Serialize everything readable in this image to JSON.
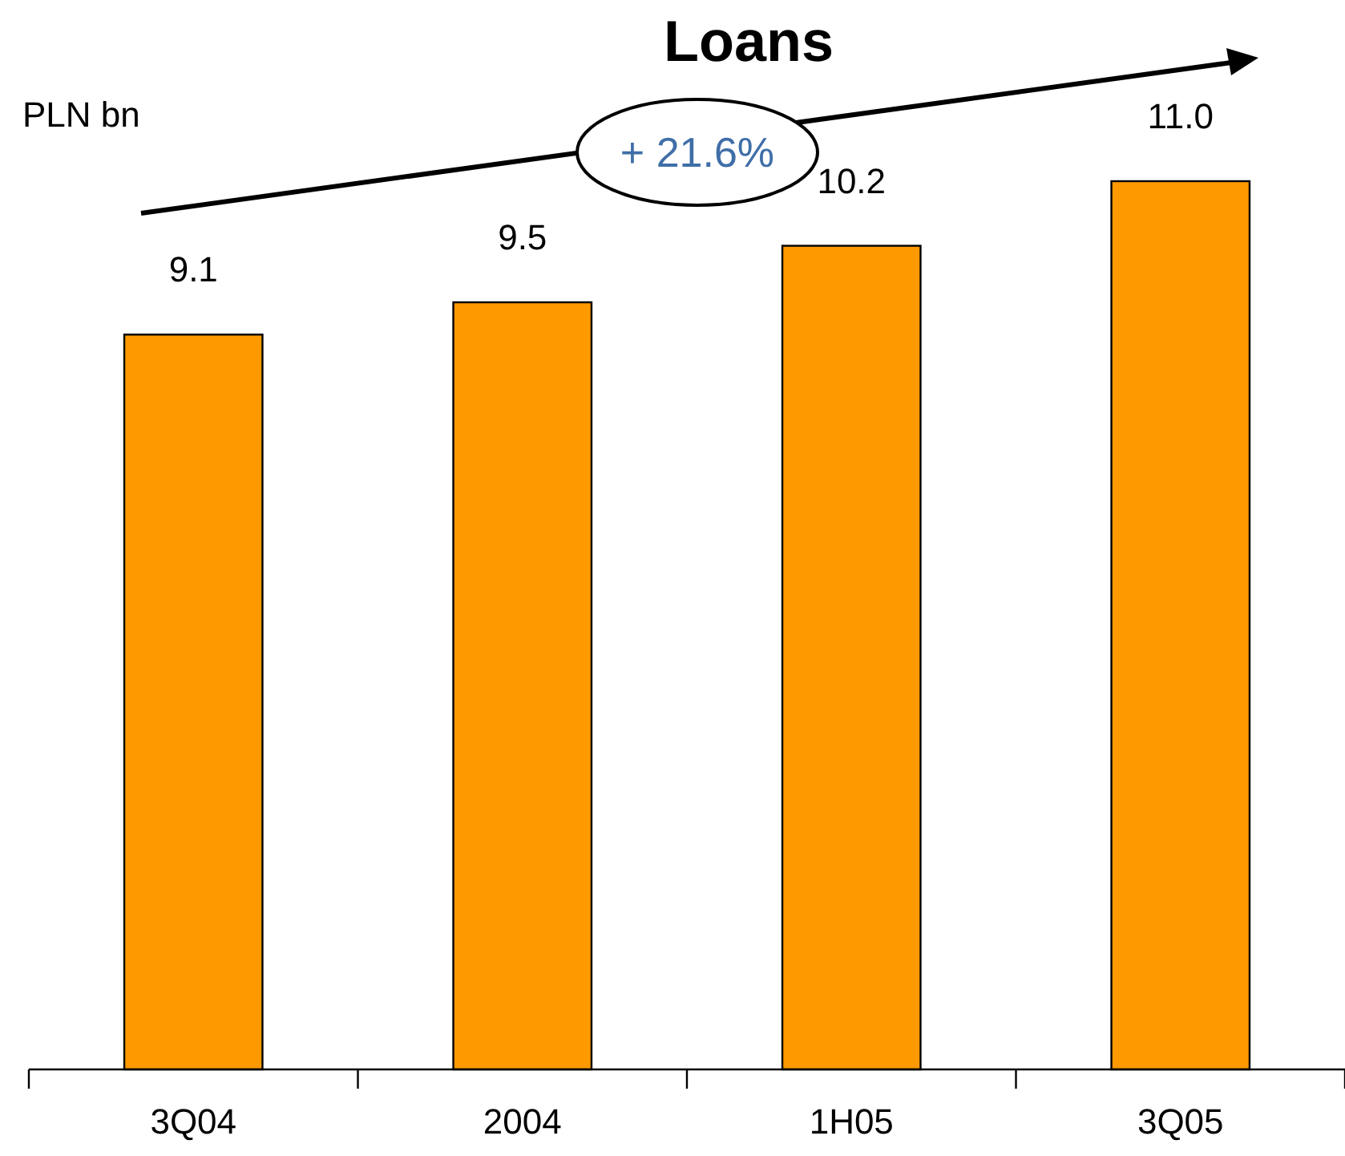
{
  "chart_data": {
    "type": "bar",
    "title": "Loans",
    "ylabel": "PLN bn",
    "categories": [
      "3Q04",
      "2004",
      "1H05",
      "3Q05"
    ],
    "values": [
      9.1,
      9.5,
      10.2,
      11.0
    ],
    "value_labels": [
      "9.1",
      "9.5",
      "10.2",
      "11.0"
    ],
    "color": "#ff9900",
    "annotations": [
      "+ 21.6%"
    ]
  }
}
